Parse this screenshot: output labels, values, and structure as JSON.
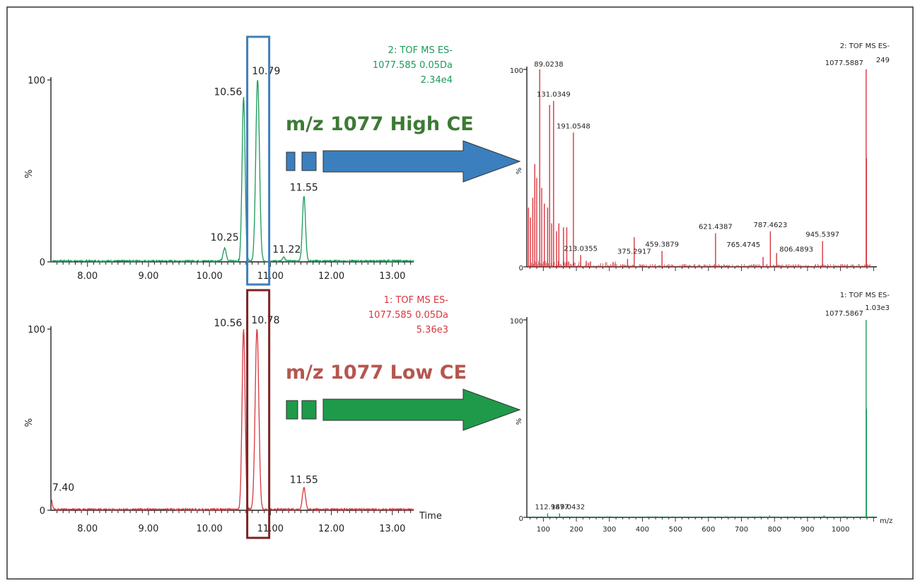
{
  "colors": {
    "green_trace": "#1a9a5a",
    "red_trace": "#d9363e",
    "blue_box": "#3f7fb8",
    "dark_red_box": "#7a2323",
    "high_ce_text": "#3d7a35",
    "low_ce_text": "#b5564f",
    "blue_arrow": "#3b7fbe",
    "green_arrow": "#1e9a4a"
  },
  "arrows": {
    "high": {
      "label": "m/z 1077 High CE"
    },
    "low": {
      "label": "m/z 1077 Low CE"
    }
  },
  "chart_data": [
    {
      "id": "chrom_high",
      "type": "line",
      "header": [
        "2: TOF MS ES-",
        "1077.585 0.05Da",
        "2.34e4"
      ],
      "y_label": "%",
      "y_ticks": [
        "0",
        "100"
      ],
      "x_ticks": [
        "8.00",
        "9.00",
        "10.00",
        "11.00",
        "12.00",
        "13.00"
      ],
      "xlim": [
        7.4,
        13.35
      ],
      "ylim": [
        0,
        100
      ],
      "peaks": [
        {
          "x": 10.25,
          "y": 7,
          "w": 0.025
        },
        {
          "x": 10.56,
          "y": 90,
          "w": 0.025
        },
        {
          "x": 10.79,
          "y": 100,
          "w": 0.03
        },
        {
          "x": 11.22,
          "y": 2,
          "w": 0.02
        },
        {
          "x": 11.55,
          "y": 36,
          "w": 0.025
        }
      ],
      "peak_labels": [
        {
          "text": "10.25",
          "x": 10.25,
          "y": 7
        },
        {
          "text": "10.56",
          "x": 10.56,
          "y": 90
        },
        {
          "text": "10.79",
          "x": 10.79,
          "y": 100
        },
        {
          "text": "11.22",
          "x": 11.22,
          "y": 2
        },
        {
          "text": "11.55",
          "x": 11.55,
          "y": 36
        }
      ],
      "highlight": [
        10.62,
        10.98
      ]
    },
    {
      "id": "chrom_low",
      "type": "line",
      "header": [
        "1: TOF MS ES-",
        "1077.585 0.05Da",
        "5.36e3"
      ],
      "y_label": "%",
      "y_ticks": [
        "0",
        "100"
      ],
      "x_ticks": [
        "8.00",
        "9.00",
        "10.00",
        "11.00",
        "12.00",
        "13.00"
      ],
      "x_axis_label": "Time",
      "xlim": [
        7.4,
        13.35
      ],
      "ylim": [
        0,
        100
      ],
      "peaks": [
        {
          "x": 7.4,
          "y": 6,
          "w": 0.02
        },
        {
          "x": 10.56,
          "y": 100,
          "w": 0.025
        },
        {
          "x": 10.78,
          "y": 100,
          "w": 0.03
        },
        {
          "x": 11.55,
          "y": 12,
          "w": 0.025
        }
      ],
      "peak_labels": [
        {
          "text": "7.40",
          "x": 7.4,
          "y": 6
        },
        {
          "text": "10.56",
          "x": 10.56,
          "y": 100
        },
        {
          "text": "10.78",
          "x": 10.78,
          "y": 100
        },
        {
          "text": "11.55",
          "x": 11.55,
          "y": 12
        }
      ],
      "highlight": [
        10.62,
        10.98
      ]
    },
    {
      "id": "ms_high",
      "type": "bar",
      "header": [
        "2: TOF MS ES-",
        "249"
      ],
      "y_label": "%",
      "y_ticks": [
        "0",
        "100"
      ],
      "xlim": [
        50,
        1110
      ],
      "ylim": [
        0,
        100
      ],
      "peaks": [
        {
          "x": 55,
          "y": 30
        },
        {
          "x": 61,
          "y": 25
        },
        {
          "x": 68,
          "y": 35
        },
        {
          "x": 74,
          "y": 52
        },
        {
          "x": 80,
          "y": 45
        },
        {
          "x": 89.0238,
          "y": 100
        },
        {
          "x": 95,
          "y": 40
        },
        {
          "x": 103,
          "y": 32
        },
        {
          "x": 113,
          "y": 30
        },
        {
          "x": 119,
          "y": 82
        },
        {
          "x": 125,
          "y": 22
        },
        {
          "x": 131.0349,
          "y": 84
        },
        {
          "x": 140,
          "y": 18
        },
        {
          "x": 147,
          "y": 22
        },
        {
          "x": 161,
          "y": 20
        },
        {
          "x": 171,
          "y": 20
        },
        {
          "x": 191.0548,
          "y": 68
        },
        {
          "x": 213.0355,
          "y": 6
        },
        {
          "x": 230,
          "y": 3
        },
        {
          "x": 355,
          "y": 4
        },
        {
          "x": 375.2917,
          "y": 15
        },
        {
          "x": 459.3879,
          "y": 8
        },
        {
          "x": 621.4387,
          "y": 17
        },
        {
          "x": 765.4745,
          "y": 5
        },
        {
          "x": 787.4623,
          "y": 18
        },
        {
          "x": 806.4893,
          "y": 7
        },
        {
          "x": 945.5397,
          "y": 13
        },
        {
          "x": 1077.5887,
          "y": 100
        },
        {
          "x": 1078.6,
          "y": 55
        }
      ],
      "peak_labels": [
        {
          "text": "89.0238",
          "x": 89.0238,
          "y": 100
        },
        {
          "text": "131.0349",
          "x": 131.0349,
          "y": 84
        },
        {
          "text": "191.0548",
          "x": 191.0548,
          "y": 68
        },
        {
          "text": "213.0355",
          "x": 213.0355,
          "y": 6
        },
        {
          "text": "375.2917",
          "x": 375.2917,
          "y": 6
        },
        {
          "text": "459.3879",
          "x": 459.3879,
          "y": 8
        },
        {
          "text": "621.4387",
          "x": 621.4387,
          "y": 17
        },
        {
          "text": "787.4623",
          "x": 787.4623,
          "y": 18
        },
        {
          "text": "765.4745",
          "x": 765.4745,
          "y": 5
        },
        {
          "text": "806.4893",
          "x": 806.4893,
          "y": 7
        },
        {
          "text": "945.5397",
          "x": 945.5397,
          "y": 13
        },
        {
          "text": "1077.5887",
          "x": 1077.5887,
          "y": 100
        }
      ]
    },
    {
      "id": "ms_low",
      "type": "bar",
      "header": [
        "1: TOF MS ES-",
        "1.03e3"
      ],
      "y_label": "%",
      "y_ticks": [
        "0",
        "100"
      ],
      "x_ticks": [
        "100",
        "200",
        "300",
        "400",
        "500",
        "600",
        "700",
        "800",
        "900",
        "1000"
      ],
      "x_axis_label": "m/z",
      "xlim": [
        50,
        1110
      ],
      "ylim": [
        0,
        100
      ],
      "peaks": [
        {
          "x": 112.9877,
          "y": 2
        },
        {
          "x": 149.0432,
          "y": 2
        },
        {
          "x": 785,
          "y": 1
        },
        {
          "x": 950,
          "y": 1
        },
        {
          "x": 1077.5867,
          "y": 100
        },
        {
          "x": 1078.6,
          "y": 55
        }
      ],
      "peak_labels": [
        {
          "text": "112.9877",
          "x": 112.9877,
          "y": 2
        },
        {
          "text": "149.0432",
          "x": 149.0432,
          "y": 2
        },
        {
          "text": "1077.5867",
          "x": 1077.5867,
          "y": 100
        }
      ]
    }
  ]
}
